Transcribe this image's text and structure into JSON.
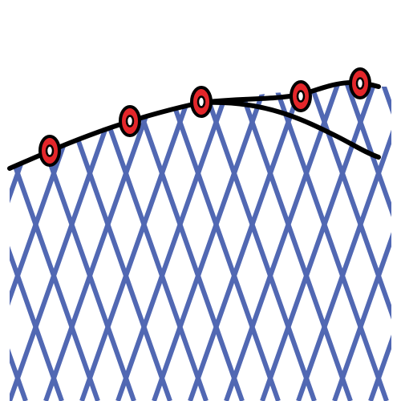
{
  "illustration": {
    "subject": "net-icon",
    "colors": {
      "background": "#ffffff",
      "mesh": "#5168b3",
      "outline": "#000000",
      "float_fill": "#e4262a",
      "float_hole": "#ffffff"
    },
    "float_count": 5
  }
}
